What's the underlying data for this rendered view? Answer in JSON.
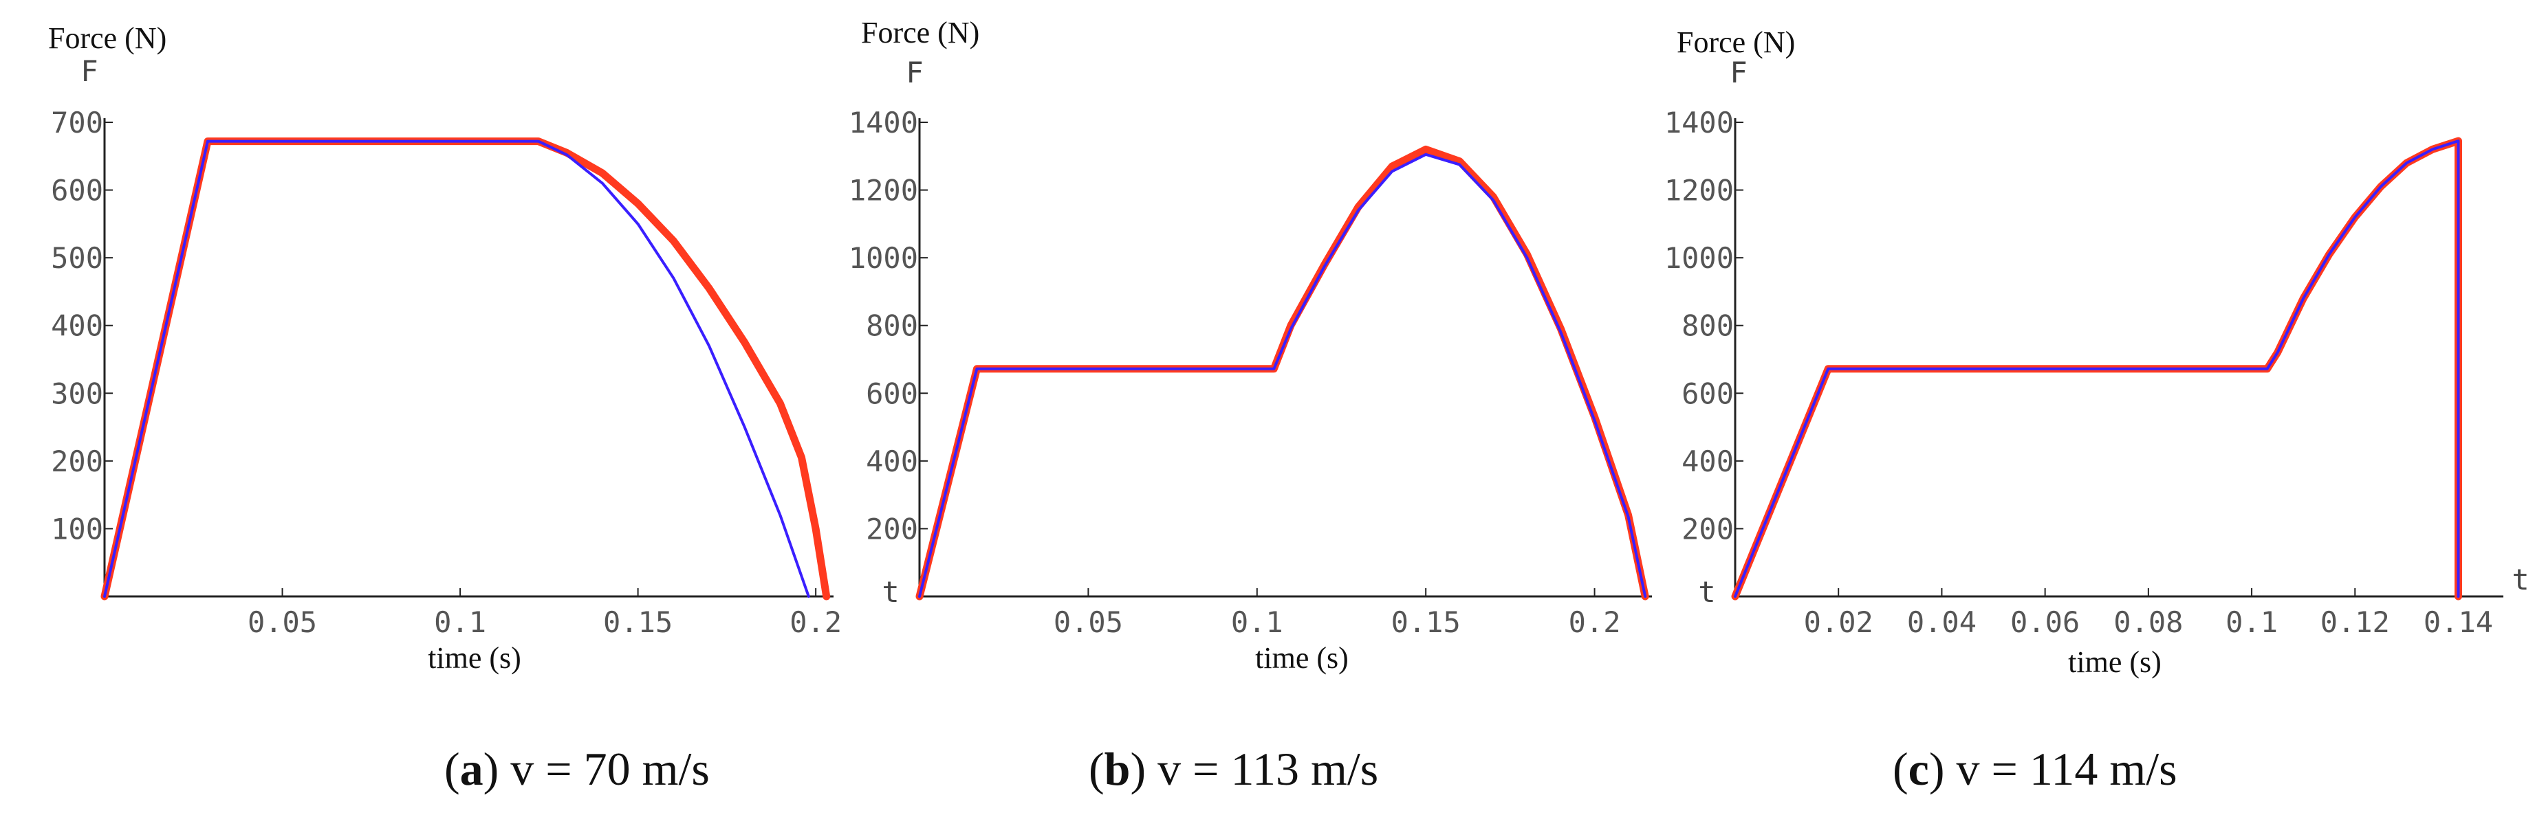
{
  "colors": {
    "red": "#ff3a1f",
    "blue": "#3a1fff"
  },
  "chart_data": [
    {
      "type": "line",
      "ylabel": "Force (N)",
      "yvar": "F",
      "xlabel": "time (s)",
      "xvar": "",
      "caption_letter": "a",
      "caption_rest": ") v = 70 m/s",
      "xlim": [
        0,
        0.205
      ],
      "ylim": [
        0,
        700
      ],
      "xticks": [
        {
          "v": 0.05,
          "label": "0.05"
        },
        {
          "v": 0.1,
          "label": "0.1"
        },
        {
          "v": 0.15,
          "label": "0.15"
        },
        {
          "v": 0.2,
          "label": "0.2"
        }
      ],
      "yticks": [
        {
          "v": 100,
          "label": "100"
        },
        {
          "v": 200,
          "label": "200"
        },
        {
          "v": 300,
          "label": "300"
        },
        {
          "v": 400,
          "label": "400"
        },
        {
          "v": 500,
          "label": "500"
        },
        {
          "v": 600,
          "label": "600"
        },
        {
          "v": 700,
          "label": "700"
        }
      ],
      "series": [
        {
          "color": "red",
          "width": 11,
          "x": [
            0,
            0.029,
            0.122,
            0.13,
            0.14,
            0.15,
            0.16,
            0.17,
            0.18,
            0.19,
            0.196,
            0.2,
            0.203
          ],
          "y": [
            0,
            672,
            672,
            655,
            625,
            580,
            525,
            455,
            375,
            285,
            205,
            100,
            0
          ]
        },
        {
          "color": "blue",
          "width": 4,
          "x": [
            0,
            0.029,
            0.122,
            0.13,
            0.14,
            0.15,
            0.16,
            0.17,
            0.18,
            0.19,
            0.198
          ],
          "y": [
            0,
            672,
            672,
            652,
            610,
            550,
            470,
            370,
            250,
            120,
            0
          ]
        }
      ]
    },
    {
      "type": "line",
      "ylabel": "Force (N)",
      "yvar": "F",
      "xlabel": "time (s)",
      "xvar": "t",
      "caption_letter": "b",
      "caption_rest": ") v = 113 m/s",
      "xlim": [
        0,
        0.217
      ],
      "ylim": [
        0,
        1400
      ],
      "xticks": [
        {
          "v": 0.05,
          "label": "0.05"
        },
        {
          "v": 0.1,
          "label": "0.1"
        },
        {
          "v": 0.15,
          "label": "0.15"
        },
        {
          "v": 0.2,
          "label": "0.2"
        }
      ],
      "yticks": [
        {
          "v": 200,
          "label": "200"
        },
        {
          "v": 400,
          "label": "400"
        },
        {
          "v": 600,
          "label": "600"
        },
        {
          "v": 800,
          "label": "800"
        },
        {
          "v": 1000,
          "label": "1000"
        },
        {
          "v": 1200,
          "label": "1200"
        },
        {
          "v": 1400,
          "label": "1400"
        }
      ],
      "series": [
        {
          "color": "red",
          "width": 11,
          "x": [
            0,
            0.017,
            0.105,
            0.11,
            0.12,
            0.13,
            0.14,
            0.15,
            0.16,
            0.17,
            0.18,
            0.19,
            0.2,
            0.21,
            0.215
          ],
          "y": [
            0,
            672,
            672,
            800,
            980,
            1150,
            1270,
            1320,
            1285,
            1180,
            1010,
            790,
            530,
            240,
            0
          ]
        },
        {
          "color": "blue",
          "width": 4,
          "x": [
            0,
            0.017,
            0.105,
            0.11,
            0.12,
            0.13,
            0.14,
            0.15,
            0.16,
            0.17,
            0.18,
            0.19,
            0.2,
            0.21,
            0.215
          ],
          "y": [
            0,
            672,
            672,
            790,
            975,
            1140,
            1255,
            1305,
            1275,
            1170,
            1000,
            780,
            520,
            235,
            0
          ]
        }
      ]
    },
    {
      "type": "line",
      "ylabel": "Force (N)",
      "yvar": "F",
      "xlabel": "time (s)",
      "xvar": "t",
      "xvar_right": "t",
      "caption_letter": "c",
      "caption_rest": ") v = 114 m/s",
      "xlim": [
        0,
        0.141
      ],
      "ylim": [
        0,
        1400
      ],
      "xticks": [
        {
          "v": 0.02,
          "label": "0.02"
        },
        {
          "v": 0.04,
          "label": "0.04"
        },
        {
          "v": 0.06,
          "label": "0.06"
        },
        {
          "v": 0.08,
          "label": "0.08"
        },
        {
          "v": 0.1,
          "label": "0.1"
        },
        {
          "v": 0.12,
          "label": "0.12"
        },
        {
          "v": 0.14,
          "label": "0.14"
        }
      ],
      "yticks": [
        {
          "v": 200,
          "label": "200"
        },
        {
          "v": 400,
          "label": "400"
        },
        {
          "v": 600,
          "label": "600"
        },
        {
          "v": 800,
          "label": "800"
        },
        {
          "v": 1000,
          "label": "1000"
        },
        {
          "v": 1200,
          "label": "1200"
        },
        {
          "v": 1400,
          "label": "1400"
        }
      ],
      "series": [
        {
          "color": "red",
          "width": 11,
          "x": [
            0,
            0.018,
            0.103,
            0.105,
            0.11,
            0.115,
            0.12,
            0.125,
            0.13,
            0.135,
            0.14,
            0.14
          ],
          "y": [
            0,
            672,
            672,
            720,
            880,
            1010,
            1120,
            1210,
            1280,
            1320,
            1345,
            0
          ]
        },
        {
          "color": "blue",
          "width": 4,
          "x": [
            0,
            0.018,
            0.103,
            0.105,
            0.11,
            0.115,
            0.12,
            0.125,
            0.13,
            0.135,
            0.14,
            0.14
          ],
          "y": [
            0,
            672,
            672,
            720,
            880,
            1010,
            1120,
            1210,
            1280,
            1320,
            1345,
            0
          ]
        }
      ]
    }
  ]
}
